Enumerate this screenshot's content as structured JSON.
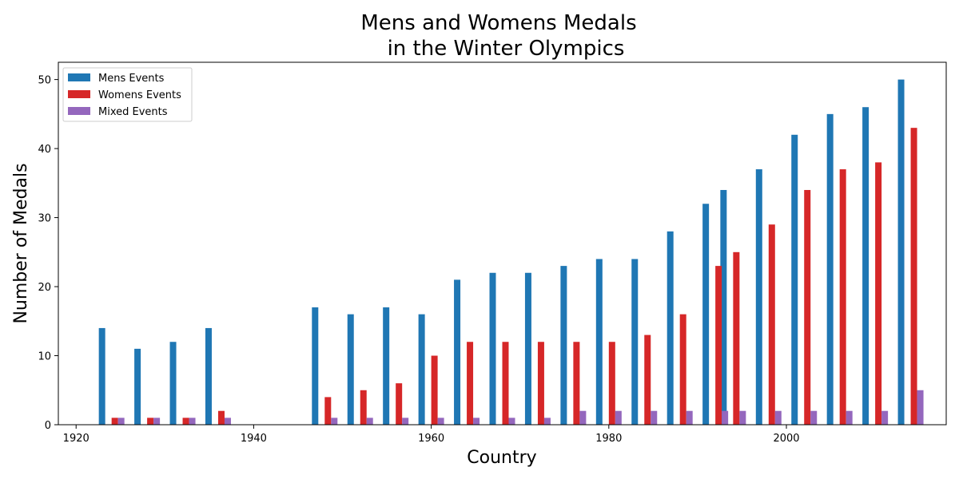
{
  "chart_data": {
    "type": "bar",
    "title_lines": [
      "Mens and Womens Medals",
      "in the Winter Olympics"
    ],
    "xlabel": "Country",
    "ylabel": "Number of Medals",
    "xlim": [
      1918,
      2018
    ],
    "ylim": [
      0,
      52.5
    ],
    "x_ticks": [
      1920,
      1940,
      1960,
      1980,
      2000
    ],
    "y_ticks": [
      0,
      10,
      20,
      30,
      40,
      50
    ],
    "grid": false,
    "legend_position": "top-left",
    "x": [
      1924,
      1928,
      1932,
      1936,
      1948,
      1952,
      1956,
      1960,
      1964,
      1968,
      1972,
      1976,
      1980,
      1984,
      1988,
      1992,
      1994,
      1998,
      2002,
      2006,
      2010,
      2014
    ],
    "series": [
      {
        "name": "Mens Events",
        "color": "#1f77b4",
        "values": [
          14,
          11,
          12,
          14,
          17,
          16,
          17,
          16,
          21,
          22,
          22,
          23,
          24,
          24,
          28,
          32,
          34,
          37,
          42,
          45,
          46,
          50
        ]
      },
      {
        "name": "Womens Events",
        "color": "#d62728",
        "values": [
          1,
          1,
          1,
          2,
          4,
          5,
          6,
          10,
          12,
          12,
          12,
          12,
          12,
          13,
          16,
          23,
          25,
          29,
          34,
          37,
          38,
          43
        ]
      },
      {
        "name": "Mixed Events",
        "color": "#9467bd",
        "values": [
          1,
          1,
          1,
          1,
          1,
          1,
          1,
          1,
          1,
          1,
          1,
          2,
          2,
          2,
          2,
          2,
          2,
          2,
          2,
          2,
          2,
          5
        ]
      }
    ]
  }
}
